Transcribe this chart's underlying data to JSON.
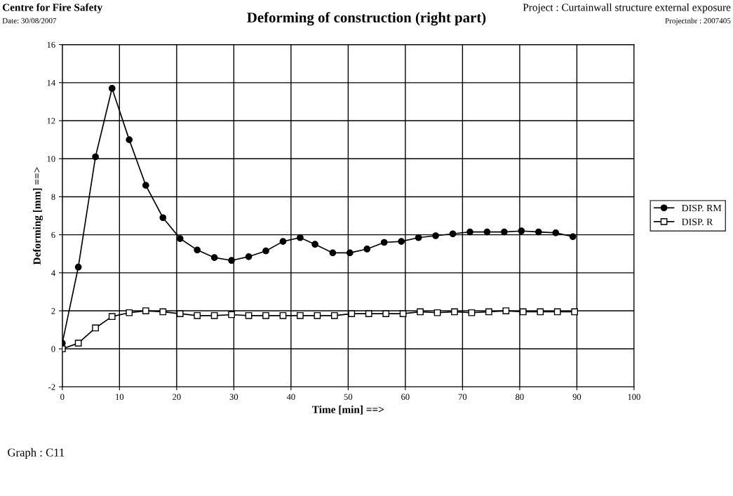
{
  "chart_data": {
    "type": "line",
    "title": "Deforming of construction (right part)",
    "xlabel": "Time [min] ==>",
    "ylabel": "Deforming [mm] ==>",
    "annotations": [
      "Centre for Fire Safety",
      "Date: 30/08/2007",
      "Project : Curtainwall structure external exposure",
      "Projectnbr : 2007405",
      "Graph : C11"
    ],
    "series": [
      {
        "name": "DISP. RM",
        "color": "#000000",
        "marker": "circle",
        "x": [
          0,
          2.8,
          5.8,
          8.7,
          11.7,
          14.6,
          17.6,
          20.6,
          23.6,
          26.6,
          29.6,
          32.6,
          35.6,
          38.6,
          41.6,
          44.2,
          47.3,
          50.3,
          53.3,
          56.3,
          59.3,
          62.3,
          65.3,
          68.3,
          71.3,
          74.3,
          77.3,
          80.3,
          83.3,
          86.3,
          89.3
        ],
        "values": [
          0.3,
          4.3,
          10.1,
          13.7,
          11.0,
          8.6,
          6.9,
          5.8,
          5.2,
          4.8,
          4.65,
          4.85,
          5.15,
          5.65,
          5.85,
          5.5,
          5.05,
          5.05,
          5.25,
          5.6,
          5.65,
          5.85,
          5.95,
          6.05,
          6.15,
          6.15,
          6.15,
          6.2,
          6.15,
          6.1,
          5.9
        ]
      },
      {
        "name": "DISP. R",
        "color": "#000000",
        "marker": "square",
        "x": [
          0,
          2.8,
          5.8,
          8.7,
          11.7,
          14.6,
          17.6,
          20.6,
          23.6,
          26.6,
          29.6,
          32.6,
          35.6,
          38.6,
          41.6,
          44.6,
          47.6,
          50.6,
          53.6,
          56.6,
          59.6,
          62.6,
          65.6,
          68.6,
          71.6,
          74.6,
          77.6,
          80.6,
          83.6,
          86.6,
          89.6
        ],
        "values": [
          0,
          0.3,
          1.1,
          1.7,
          1.9,
          2.0,
          1.95,
          1.85,
          1.75,
          1.75,
          1.8,
          1.75,
          1.75,
          1.75,
          1.75,
          1.75,
          1.75,
          1.85,
          1.85,
          1.85,
          1.85,
          1.95,
          1.9,
          1.95,
          1.9,
          1.95,
          2.0,
          1.95,
          1.95,
          1.95,
          1.95
        ]
      }
    ],
    "xlim": [
      0,
      100
    ],
    "xticks": [
      0,
      10,
      20,
      30,
      40,
      50,
      60,
      70,
      80,
      90,
      100
    ],
    "ylim": [
      -2,
      16
    ],
    "yticks": [
      -2,
      0,
      2,
      4,
      6,
      8,
      10,
      12,
      14,
      16
    ],
    "grid": true,
    "legend": "right",
    "line_style": "solid"
  }
}
